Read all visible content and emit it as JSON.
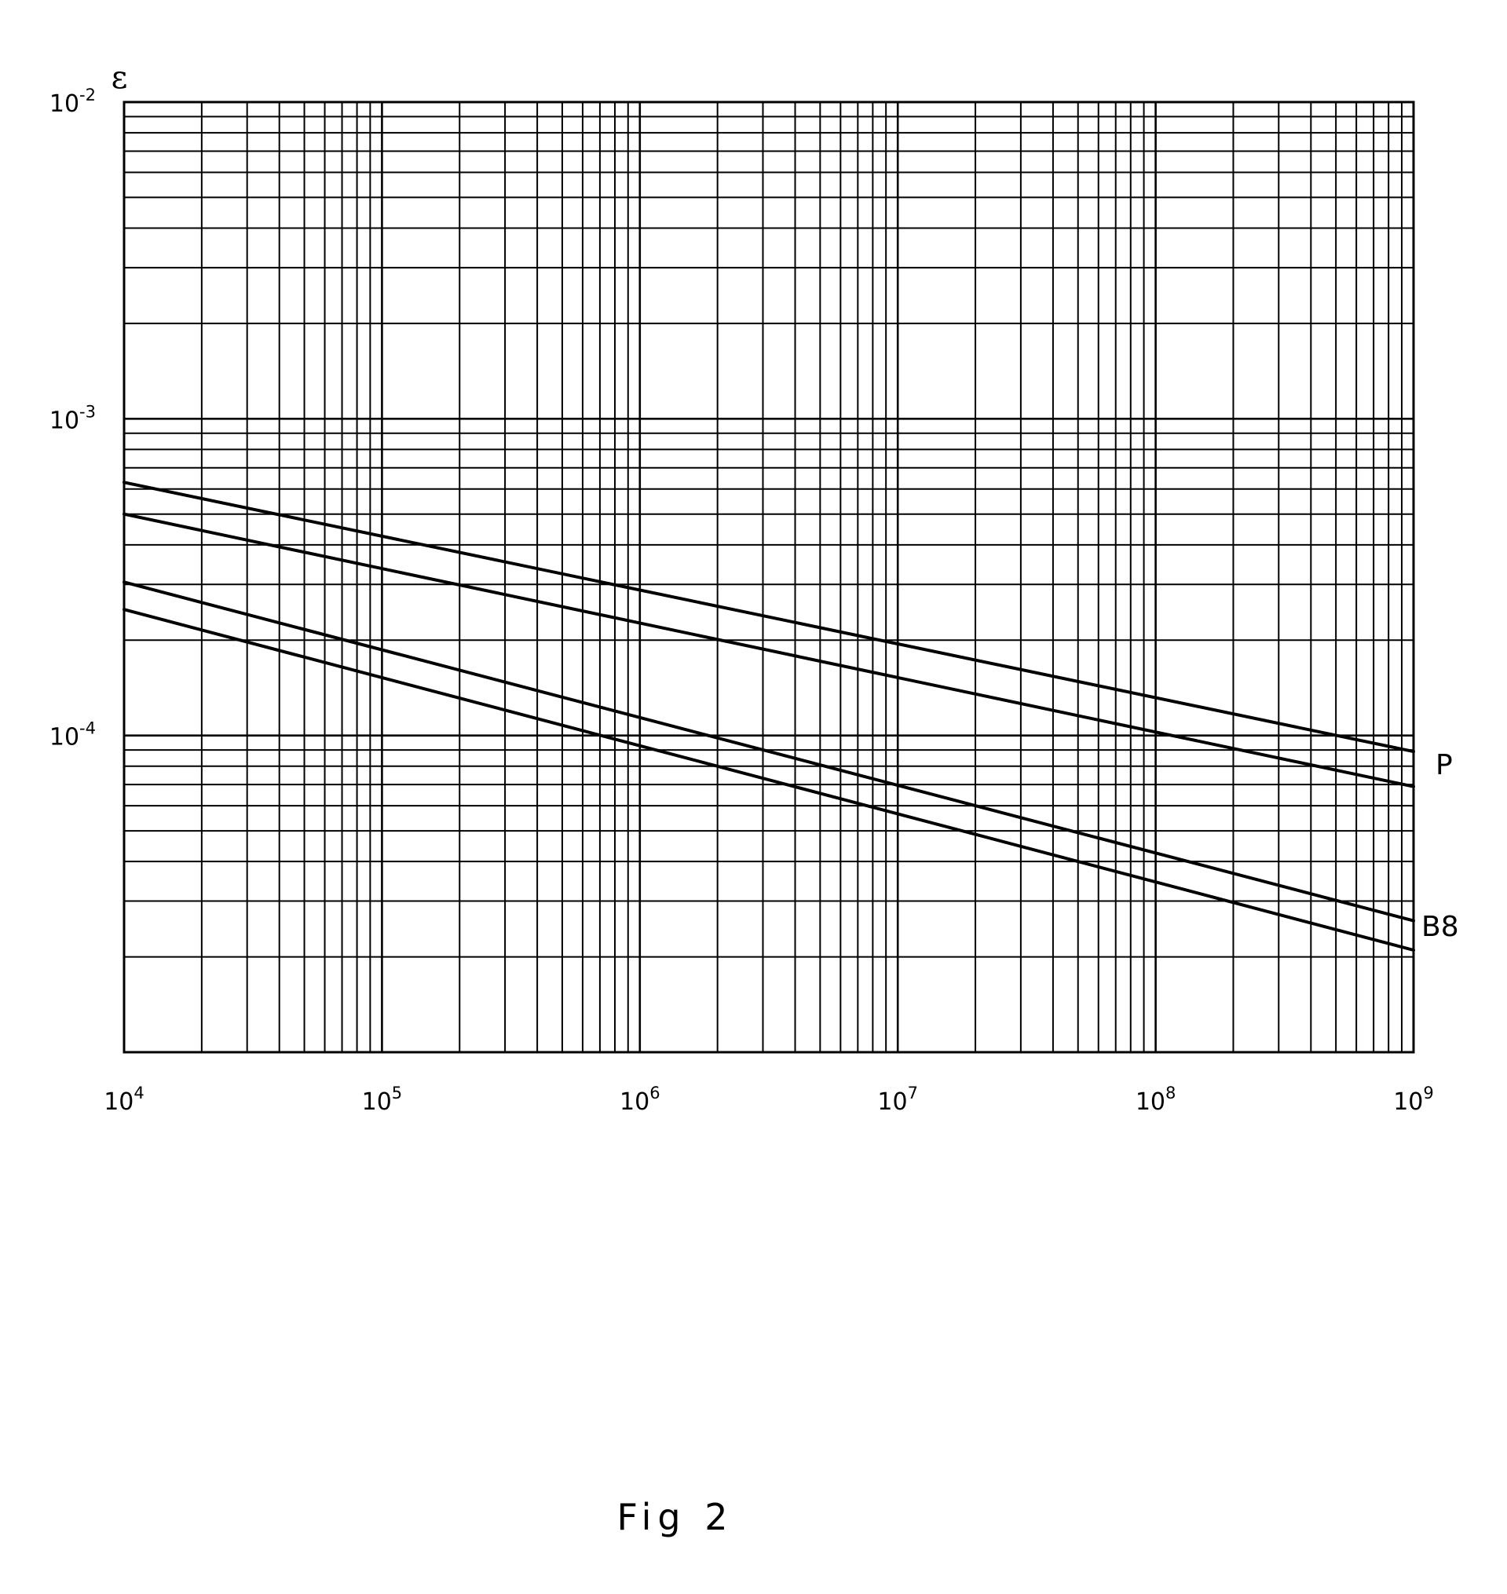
{
  "chart_data": {
    "type": "line",
    "title": "",
    "caption": "Fig 2",
    "ylabel": "ε",
    "xlabel": "",
    "x_scale": "log",
    "y_scale": "log",
    "xlim": [
      10000,
      1000000000
    ],
    "ylim": [
      1e-05,
      0.01
    ],
    "grid": true,
    "x_ticks": [
      {
        "value": 10000,
        "base": "10",
        "exp": "4"
      },
      {
        "value": 100000,
        "base": "10",
        "exp": "5"
      },
      {
        "value": 1000000,
        "base": "10",
        "exp": "6"
      },
      {
        "value": 10000000,
        "base": "10",
        "exp": "7"
      },
      {
        "value": 100000000,
        "base": "10",
        "exp": "8"
      },
      {
        "value": 1000000000,
        "base": "10",
        "exp": "9"
      }
    ],
    "y_ticks": [
      {
        "value": 0.01,
        "base": "10",
        "exp": "-2"
      },
      {
        "value": 0.001,
        "base": "10",
        "exp": "-3"
      },
      {
        "value": 0.0001,
        "base": "10",
        "exp": "-4"
      }
    ],
    "series": [
      {
        "x": [
          10000,
          1000000000
        ],
        "y": [
          0.00063,
          8.9e-05
        ]
      },
      {
        "x": [
          10000,
          1000000000
        ],
        "y": [
          0.0005,
          6.9e-05
        ]
      },
      {
        "x": [
          10000,
          1000000000
        ],
        "y": [
          0.000305,
          2.6e-05
        ]
      },
      {
        "x": [
          10000,
          1000000000
        ],
        "y": [
          0.00025,
          2.1e-05
        ]
      }
    ],
    "annotations": [
      {
        "text": "P",
        "near_series": [
          0,
          1
        ]
      },
      {
        "text": "B8",
        "near_series": [
          2,
          3
        ]
      }
    ]
  }
}
